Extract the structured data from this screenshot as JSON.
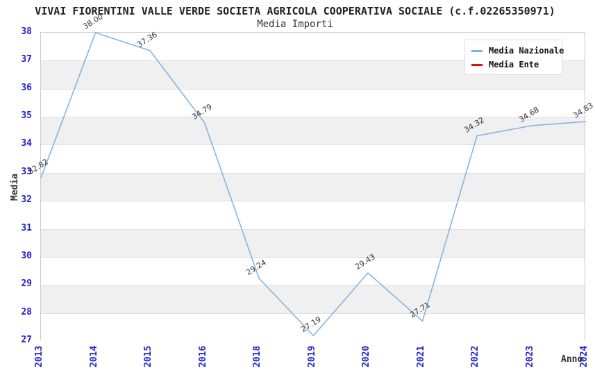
{
  "chart_data": {
    "type": "line",
    "title": "VIVAI FIORENTINI VALLE VERDE SOCIETA AGRICOLA COOPERATIVA SOCIALE (c.f.02265350971)",
    "subtitle": "Media Importi",
    "xlabel": "Anno",
    "ylabel": "Media",
    "categories": [
      "2013",
      "2014",
      "2015",
      "2016",
      "2018",
      "2019",
      "2020",
      "2021",
      "2022",
      "2023",
      "2024"
    ],
    "series": [
      {
        "name": "Media Nazionale",
        "color": "#7cb0e3",
        "values": [
          32.82,
          38.0,
          37.36,
          34.79,
          29.24,
          27.19,
          29.43,
          27.71,
          34.32,
          34.68,
          34.83
        ],
        "point_labels": [
          "32.82",
          "38.00",
          "37.36",
          "34.79",
          "29.24",
          "27.19",
          "29.43",
          "27.71",
          "34.32",
          "34.68",
          "34.83"
        ]
      },
      {
        "name": "Media Ente",
        "color": "#dd1111",
        "values": [],
        "point_labels": []
      }
    ],
    "ylim": [
      27,
      38
    ],
    "y_ticks": [
      27,
      28,
      29,
      30,
      31,
      32,
      33,
      34,
      35,
      36,
      37,
      38
    ],
    "grid": "horizontal-bands-alternating",
    "legend_position": "top-right"
  },
  "colors": {
    "line_nazionale": "#7cb0e3",
    "line_ente": "#dd1111",
    "tick_label": "#2222cc",
    "band_gray": "#f0f0f0",
    "grid_line": "#e0e0e0",
    "plot_border": "#c9c9c9",
    "title_text": "#222222",
    "data_label": "#333333"
  }
}
